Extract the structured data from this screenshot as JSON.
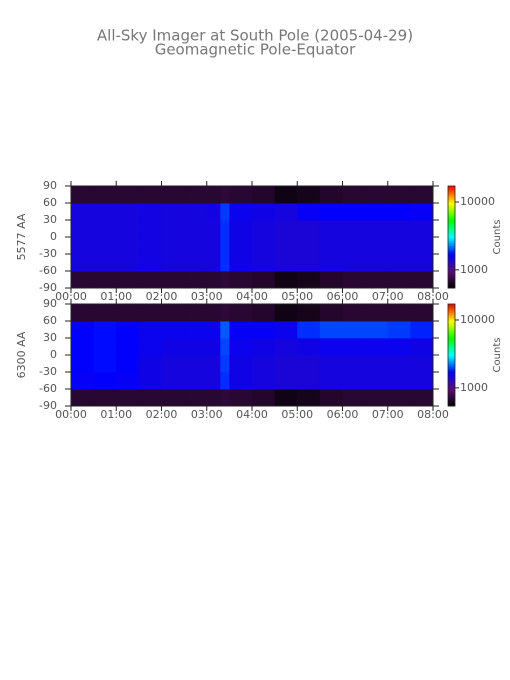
{
  "header": {
    "title": "All-Sky Imager at South Pole (2005-04-29)",
    "subtitle": "Geomagnetic Pole-Equator"
  },
  "chart_data": [
    {
      "type": "heatmap",
      "ylabel": "5577 AA",
      "x_edges": [
        0,
        0.5,
        1,
        1.5,
        2,
        2.5,
        3,
        3.3,
        3.5,
        4,
        4.5,
        5,
        5.5,
        6,
        6.5,
        7,
        7.5,
        8
      ],
      "y_edges": [
        -90,
        -60,
        -30,
        0,
        30,
        60,
        90
      ],
      "values": [
        [
          700,
          700,
          700,
          700,
          700,
          700,
          700,
          720,
          700,
          680,
          600,
          620,
          680,
          700,
          700,
          700,
          700
        ],
        [
          1500,
          1500,
          1500,
          1520,
          1500,
          1500,
          1500,
          1900,
          1550,
          1500,
          1450,
          1450,
          1500,
          1500,
          1500,
          1500,
          1500
        ],
        [
          1500,
          1500,
          1500,
          1520,
          1500,
          1500,
          1500,
          1900,
          1550,
          1500,
          1450,
          1450,
          1500,
          1500,
          1500,
          1500,
          1500
        ],
        [
          1500,
          1500,
          1500,
          1520,
          1500,
          1500,
          1500,
          1900,
          1550,
          1500,
          1450,
          1450,
          1500,
          1500,
          1500,
          1500,
          1500
        ],
        [
          1500,
          1500,
          1500,
          1520,
          1500,
          1500,
          1520,
          1950,
          1600,
          1550,
          1500,
          1650,
          1700,
          1700,
          1700,
          1700,
          1650
        ],
        [
          700,
          700,
          700,
          700,
          700,
          700,
          700,
          720,
          700,
          680,
          600,
          620,
          680,
          700,
          700,
          700,
          700
        ]
      ],
      "xlim": [
        0,
        8
      ],
      "xticks": [
        {
          "value": 0,
          "label": "00:00"
        },
        {
          "value": 1,
          "label": "01:00"
        },
        {
          "value": 2,
          "label": "02:00"
        },
        {
          "value": 3,
          "label": "03:00"
        },
        {
          "value": 4,
          "label": "04:00"
        },
        {
          "value": 5,
          "label": "05:00"
        },
        {
          "value": 6,
          "label": "06:00"
        },
        {
          "value": 7,
          "label": "07:00"
        },
        {
          "value": 8,
          "label": "08:00"
        }
      ],
      "ylim": [
        -90,
        90
      ],
      "yticks": [
        -90,
        -60,
        -30,
        0,
        30,
        60,
        90
      ],
      "colorbar": {
        "label": "Counts",
        "scale": "log",
        "clim": [
          540,
          17200
        ],
        "ticks": [
          1000,
          10000
        ]
      },
      "colormap": [
        "#000000",
        "#5a1070",
        "#0000ff",
        "#00ffff",
        "#00ff00",
        "#ffff00",
        "#ff0000"
      ]
    },
    {
      "type": "heatmap",
      "ylabel": "6300 AA",
      "x_edges": [
        0,
        0.5,
        1,
        1.5,
        2,
        2.5,
        3,
        3.3,
        3.5,
        4,
        4.5,
        5,
        5.5,
        6,
        6.5,
        7,
        7.5,
        8
      ],
      "y_edges": [
        -90,
        -60,
        -30,
        0,
        30,
        60,
        90
      ],
      "values": [
        [
          700,
          700,
          700,
          700,
          700,
          700,
          700,
          720,
          700,
          680,
          600,
          620,
          680,
          700,
          700,
          700,
          700
        ],
        [
          1650,
          1700,
          1650,
          1550,
          1500,
          1500,
          1500,
          1900,
          1550,
          1500,
          1450,
          1450,
          1500,
          1500,
          1500,
          1500,
          1500
        ],
        [
          1700,
          1750,
          1700,
          1550,
          1500,
          1500,
          1500,
          1950,
          1550,
          1500,
          1450,
          1450,
          1500,
          1500,
          1500,
          1500,
          1500
        ],
        [
          1700,
          1750,
          1700,
          1600,
          1550,
          1550,
          1550,
          2000,
          1600,
          1550,
          1500,
          1550,
          1600,
          1600,
          1600,
          1600,
          1550
        ],
        [
          1700,
          1750,
          1700,
          1600,
          1600,
          1600,
          1600,
          2100,
          1650,
          1650,
          1600,
          1900,
          2000,
          2000,
          2000,
          1950,
          1850
        ],
        [
          700,
          700,
          700,
          700,
          700,
          700,
          700,
          720,
          700,
          680,
          600,
          620,
          680,
          700,
          700,
          700,
          700
        ]
      ],
      "xlim": [
        0,
        8
      ],
      "xticks": [
        {
          "value": 0,
          "label": "00:00"
        },
        {
          "value": 1,
          "label": "01:00"
        },
        {
          "value": 2,
          "label": "02:00"
        },
        {
          "value": 3,
          "label": "03:00"
        },
        {
          "value": 4,
          "label": "04:00"
        },
        {
          "value": 5,
          "label": "05:00"
        },
        {
          "value": 6,
          "label": "06:00"
        },
        {
          "value": 7,
          "label": "07:00"
        },
        {
          "value": 8,
          "label": "08:00"
        }
      ],
      "ylim": [
        -90,
        90
      ],
      "yticks": [
        -90,
        -60,
        -30,
        0,
        30,
        60,
        90
      ],
      "colorbar": {
        "label": "Counts",
        "scale": "log",
        "clim": [
          540,
          17200
        ],
        "ticks": [
          1000,
          10000
        ]
      },
      "colormap": [
        "#000000",
        "#5a1070",
        "#0000ff",
        "#00ffff",
        "#00ff00",
        "#ffff00",
        "#ff0000"
      ]
    }
  ]
}
